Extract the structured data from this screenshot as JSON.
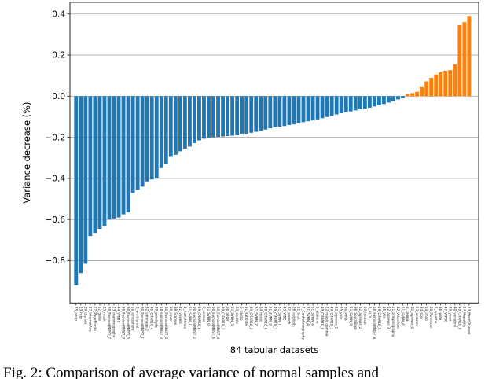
{
  "figure": {
    "caption": "Fig. 2: Comparison of average variance of normal samples and"
  },
  "chart_data": {
    "type": "bar",
    "title": "",
    "xlabel": "84 tabular datasets",
    "ylabel": "Variance decrease (%)",
    "ylim": [
      -1.0,
      0.46
    ],
    "yticks": [
      0.4,
      0.2,
      0.0,
      -0.2,
      -0.4,
      -0.6,
      -0.8
    ],
    "ytick_labels": [
      "0.4",
      "0.2",
      "0.0",
      "−0.2",
      "−0.4",
      "−0.6",
      "−0.8"
    ],
    "grid": true,
    "legend": "none",
    "bar_color_negative": "#1f77b4",
    "bar_color_positive": "#ff7f0e",
    "grid_color": "#b0b0b0",
    "axis_color": "#262626",
    "categories": [
      "35_smtp",
      "15_http",
      "39_thyroid",
      "17_InternetAds",
      "27_PageBlocks",
      "12_glass",
      "25_musk",
      "50_FashionMNIST_7",
      "23_mammography",
      "44_WDBC",
      "50_FashionMNIST_9",
      "50_FashionMNIST_5",
      "18_Ionosphere",
      "3_annthyroid",
      "50_FashionMNIST_1",
      "32_satimage-2",
      "49_CIFAR10_4",
      "29_pendigits",
      "50_FashionMNIST_3",
      "50_FashionMNIST_0",
      "10_cover",
      "38_Stamps",
      "41_vowels",
      "4_Arrhythmia",
      "51_SVHN_1",
      "50_FashionMNIST_2",
      "49_CIFAR10_8",
      "9_census",
      "51_SVHN_0",
      "50_FashionMNIST_6",
      "50_FashionMNIST_4",
      "49_CIFAR10_7",
      "20_letter",
      "51_SVHN_5",
      "33_shuttle",
      "6_cardio",
      "31_satellite",
      "49_CIFAR10_2",
      "51_SVHN_2",
      "24_mnist",
      "49_CIFAR10_6",
      "51_SVHN_3",
      "49_CIFAR10_3",
      "51_SVHN_7",
      "43_WBC",
      "37_speech",
      "26_optdigits",
      "11_fault",
      "7_Cardiotocography",
      "51_SVHN_4",
      "51_SVHN_8",
      "1_abalone",
      "49_CIFAR10_0",
      "22_magic.gamma",
      "49_CIFAR10_1",
      "52_agnews_1",
      "55_yelp",
      "30_Pima",
      "51_SVHN_9",
      "36_SpamBase",
      "52_agnews_2",
      "19_landsat",
      "2_ALOI",
      "50_FashionMNIST_8",
      "49_CIFAR10_5",
      "45_Wilt",
      "52_agnews_3",
      "21_Lymphography",
      "42_Waveform",
      "51_SVHN_6",
      "8_celeba",
      "52_agnews_0",
      "53_amazon",
      "34_skin",
      "54_imdb",
      "28_Parkinson",
      "5_breastw",
      "46_wine",
      "47_WPBC",
      "48_yeast",
      "40_vertebral",
      "49_CIFAR10_9",
      "14_Hepatitis",
      "13_HeartDisease"
    ],
    "values": [
      -0.92,
      -0.86,
      -0.815,
      -0.68,
      -0.665,
      -0.645,
      -0.63,
      -0.6,
      -0.595,
      -0.59,
      -0.575,
      -0.565,
      -0.47,
      -0.455,
      -0.44,
      -0.415,
      -0.405,
      -0.4,
      -0.35,
      -0.33,
      -0.295,
      -0.285,
      -0.268,
      -0.255,
      -0.245,
      -0.228,
      -0.215,
      -0.207,
      -0.203,
      -0.2,
      -0.198,
      -0.196,
      -0.194,
      -0.192,
      -0.19,
      -0.186,
      -0.182,
      -0.178,
      -0.173,
      -0.168,
      -0.162,
      -0.156,
      -0.151,
      -0.148,
      -0.145,
      -0.14,
      -0.137,
      -0.131,
      -0.126,
      -0.122,
      -0.118,
      -0.113,
      -0.107,
      -0.101,
      -0.095,
      -0.089,
      -0.083,
      -0.078,
      -0.074,
      -0.069,
      -0.064,
      -0.06,
      -0.056,
      -0.05,
      -0.044,
      -0.038,
      -0.031,
      -0.024,
      -0.016,
      -0.007,
      0.01,
      0.015,
      0.021,
      0.044,
      0.072,
      0.089,
      0.105,
      0.116,
      0.124,
      0.127,
      0.154,
      0.345,
      0.36,
      0.39
    ]
  }
}
